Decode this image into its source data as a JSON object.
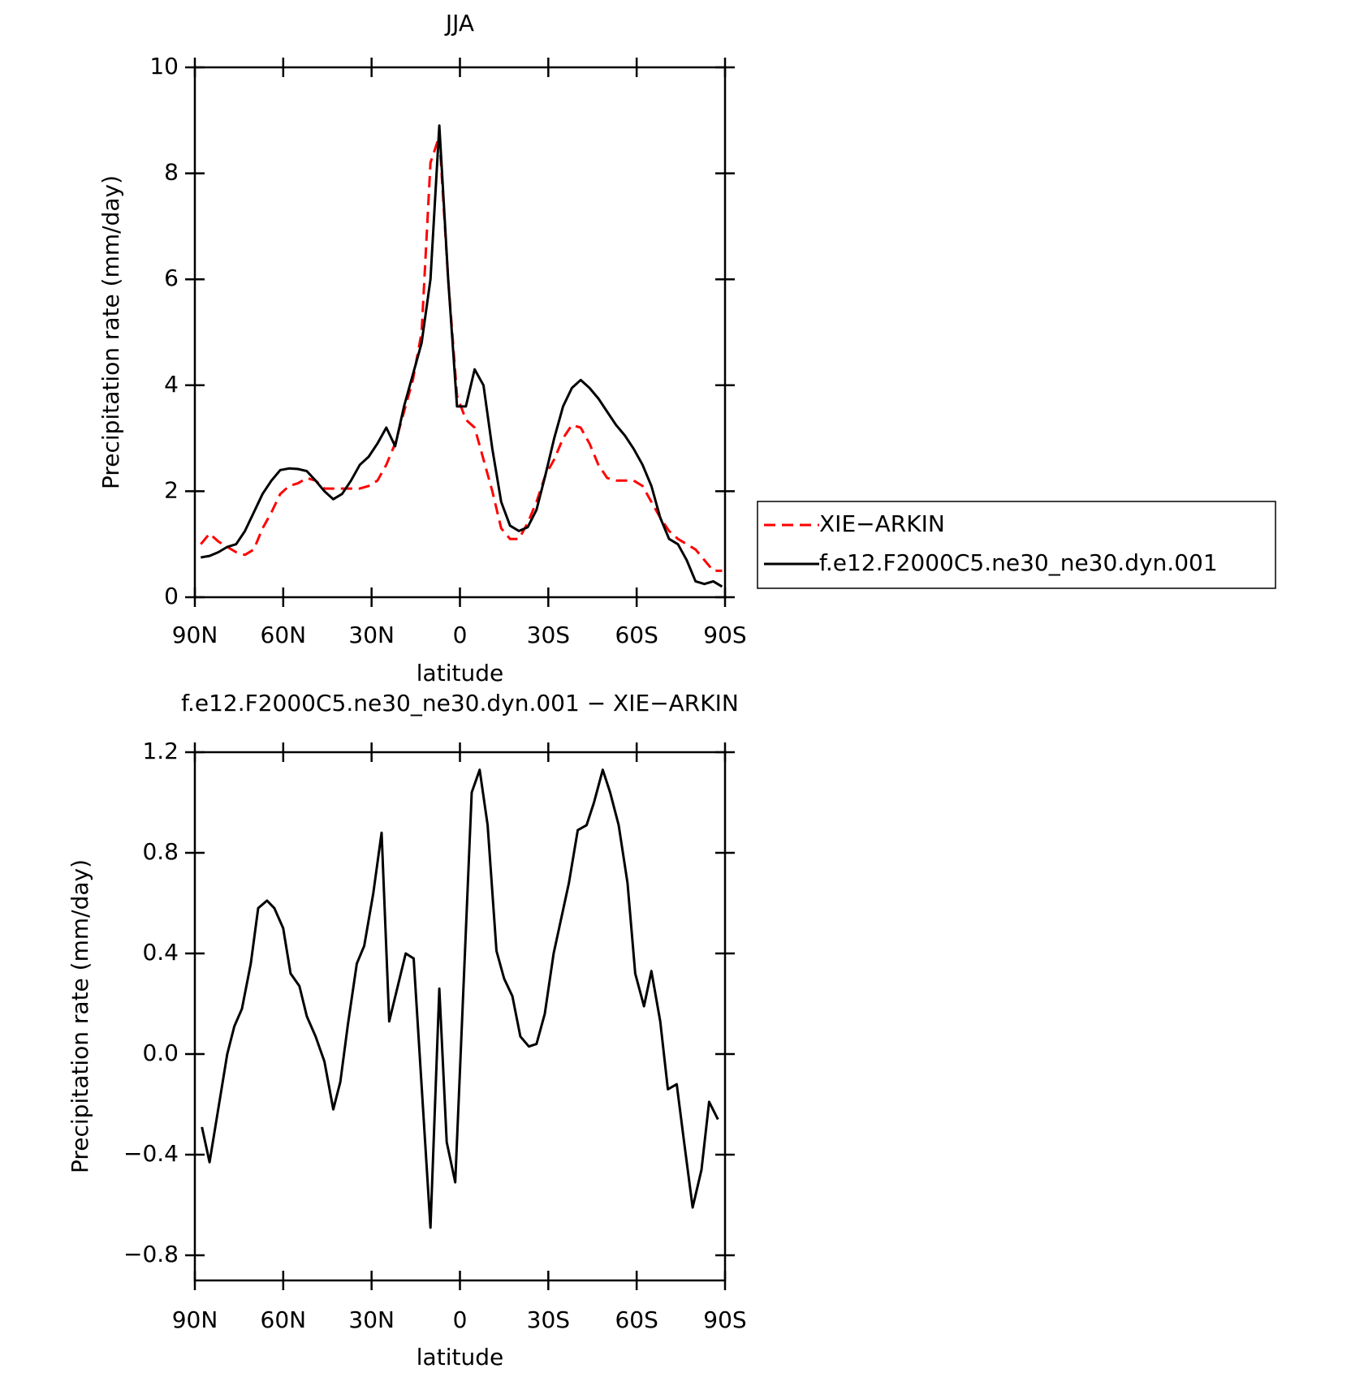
{
  "chart_data": [
    {
      "type": "line",
      "title": "JJA",
      "xlabel": "latitude",
      "ylabel": "Precipitation rate (mm/day)",
      "x": [
        88,
        85,
        82,
        79,
        76,
        73,
        70,
        67,
        64,
        61,
        58,
        55,
        52,
        49,
        46,
        43,
        40,
        37,
        34,
        31,
        28,
        25,
        22,
        19,
        16,
        13,
        10,
        7,
        4,
        1,
        -2,
        -5,
        -8,
        -11,
        -14,
        -17,
        -20,
        -23,
        -26,
        -29,
        -32,
        -35,
        -38,
        -41,
        -44,
        -47,
        -50,
        -53,
        -56,
        -59,
        -62,
        -65,
        -68,
        -71,
        -74,
        -77,
        -80,
        -83,
        -86,
        -89
      ],
      "series": [
        {
          "name": "XIE−ARKIN",
          "color": "#ff0000",
          "dashed": true,
          "values": [
            1.0,
            1.2,
            1.05,
            0.95,
            0.85,
            0.8,
            0.9,
            1.3,
            1.6,
            1.95,
            2.1,
            2.15,
            2.25,
            2.2,
            2.05,
            2.05,
            2.05,
            2.05,
            2.05,
            2.1,
            2.2,
            2.5,
            2.9,
            3.5,
            4.1,
            5.0,
            8.2,
            8.7,
            6.0,
            3.8,
            3.35,
            3.2,
            2.6,
            2.0,
            1.3,
            1.1,
            1.1,
            1.4,
            1.8,
            2.3,
            2.6,
            3.0,
            3.25,
            3.2,
            2.9,
            2.5,
            2.25,
            2.2,
            2.2,
            2.2,
            2.1,
            1.8,
            1.5,
            1.25,
            1.1,
            1.0,
            0.9,
            0.7,
            0.5,
            0.5
          ]
        },
        {
          "name": "f.e12.F2000C5.ne30_ne30.dyn.001",
          "color": "#000000",
          "dashed": false,
          "values": [
            0.75,
            0.78,
            0.85,
            0.95,
            1.0,
            1.25,
            1.6,
            1.95,
            2.2,
            2.4,
            2.43,
            2.42,
            2.38,
            2.2,
            2.0,
            1.85,
            1.95,
            2.2,
            2.5,
            2.65,
            2.9,
            3.2,
            2.85,
            3.6,
            4.2,
            4.8,
            6.0,
            8.9,
            6.0,
            3.6,
            3.6,
            4.3,
            4.0,
            2.8,
            1.8,
            1.35,
            1.25,
            1.32,
            1.65,
            2.3,
            3.0,
            3.6,
            3.95,
            4.1,
            3.95,
            3.75,
            3.5,
            3.25,
            3.05,
            2.8,
            2.5,
            2.1,
            1.5,
            1.1,
            1.0,
            0.7,
            0.3,
            0.25,
            0.3,
            0.2
          ]
        }
      ],
      "xlim": [
        90,
        -90
      ],
      "xticks": [
        {
          "value": 90,
          "label": "90N"
        },
        {
          "value": 60,
          "label": "60N"
        },
        {
          "value": 30,
          "label": "30N"
        },
        0,
        {
          "value": -30,
          "label": "30S"
        },
        {
          "value": -60,
          "label": "60S"
        },
        {
          "value": -90,
          "label": "90S"
        }
      ],
      "ylim": [
        0,
        10
      ],
      "yticks": [
        0,
        2,
        4,
        6,
        8,
        10
      ],
      "legend": "right"
    },
    {
      "type": "line",
      "title": "f.e12.F2000C5.ne30_ne30.dyn.001 − XIE−ARKIN",
      "xlabel": "latitude",
      "ylabel": "Precipitation rate (mm/day)",
      "x": [
        87.6,
        85,
        79,
        76.6,
        74,
        71,
        68.5,
        65.5,
        63,
        60,
        57.5,
        54.5,
        52,
        49,
        46,
        43,
        40.6,
        38,
        35,
        32.5,
        29.4,
        26.6,
        24,
        18.4,
        15.7,
        10,
        7,
        4.5,
        1.6,
        -4,
        -6.7,
        -9.4,
        -12.4,
        -15,
        -17.8,
        -20.5,
        -23.4,
        -26,
        -28.8,
        -31.8,
        -37,
        -40,
        -43,
        -45.5,
        -48.5,
        -51,
        -53.9,
        -56.9,
        -59.5,
        -62.5,
        -65,
        -68,
        -70.6,
        -73.6,
        -76,
        -79,
        -82,
        -84.6,
        -87.6
      ],
      "series": [
        {
          "color": "#000000",
          "dashed": false,
          "values": [
            -0.29,
            -0.43,
            0,
            0.11,
            0.18,
            0.36,
            0.58,
            0.61,
            0.58,
            0.5,
            0.32,
            0.27,
            0.15,
            0.07,
            -0.03,
            -0.22,
            -0.11,
            0.12,
            0.36,
            0.43,
            0.64,
            0.88,
            0.13,
            0.4,
            0.38,
            -0.69,
            0.26,
            -0.35,
            -0.51,
            1.04,
            1.13,
            0.91,
            0.41,
            0.3,
            0.23,
            0.07,
            0.03,
            0.04,
            0.16,
            0.4,
            0.68,
            0.89,
            0.91,
            1.0,
            1.13,
            1.04,
            0.91,
            0.68,
            0.32,
            0.19,
            0.33,
            0.13,
            -0.14,
            -0.12,
            -0.34,
            -0.61,
            -0.46,
            -0.19,
            -0.26
          ]
        }
      ],
      "xlim": [
        90,
        -90
      ],
      "xticks": [
        {
          "value": 90,
          "label": "90N"
        },
        {
          "value": 60,
          "label": "60N"
        },
        {
          "value": 30,
          "label": "30N"
        },
        0,
        {
          "value": -30,
          "label": "30S"
        },
        {
          "value": -60,
          "label": "60S"
        },
        {
          "value": -90,
          "label": "90S"
        }
      ],
      "ylim": [
        -0.9,
        1.2
      ],
      "yticks": [
        {
          "value": -0.8,
          "label": "−0.8"
        },
        {
          "value": -0.4,
          "label": "−0.4"
        },
        {
          "value": 0,
          "label": "0.0"
        },
        0.4,
        0.8,
        1.2
      ]
    }
  ]
}
